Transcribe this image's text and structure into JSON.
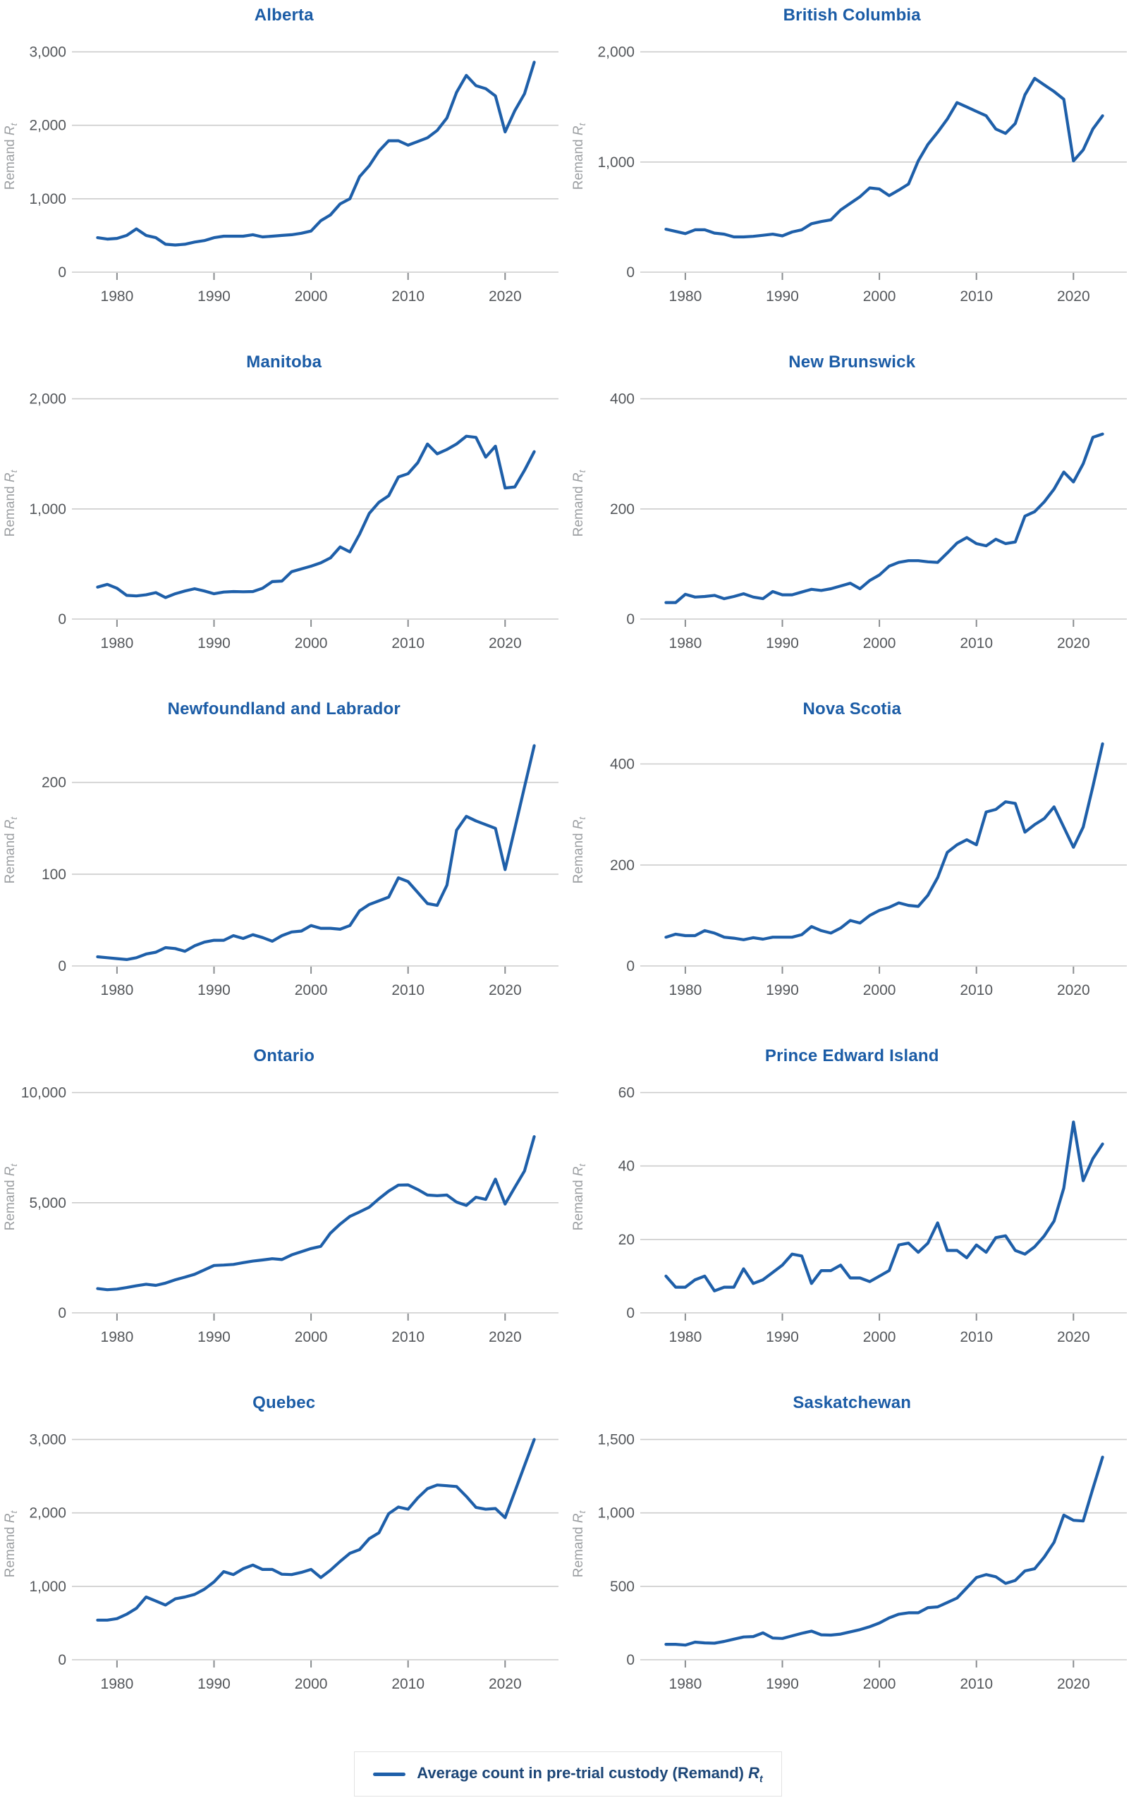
{
  "colors": {
    "title_blue": "#1b5ca6",
    "line_blue": "#1e5fa9",
    "gridline": "#cccccc",
    "tick_mark": "#898c8f",
    "tick_label": "#54575b",
    "axis_unit_label": "#9c9fa2",
    "legend_text": "#1c4677",
    "legend_border": "#e2e2e2"
  },
  "ylabel": {
    "prefix": "Remand ",
    "symbol": "R",
    "subscript": "t"
  },
  "legend": {
    "label": "Average count in pre-trial custody (Remand) ",
    "symbol": "R",
    "subscript": "t"
  },
  "chart_data": {
    "type": "line",
    "layout": "small-multiples-2x5",
    "grid": true,
    "series_label": "Average count in pre-trial custody (Remand) Rt",
    "xlabel": "",
    "ylabel": "Remand Rt",
    "xlim": [
      1975.5,
      2025.5
    ],
    "xticks": [
      1980,
      1990,
      2000,
      2010,
      2020
    ],
    "years": [
      1978,
      1979,
      1980,
      1981,
      1982,
      1983,
      1984,
      1985,
      1986,
      1987,
      1988,
      1989,
      1990,
      1991,
      1992,
      1993,
      1994,
      1995,
      1996,
      1997,
      1998,
      1999,
      2000,
      2001,
      2002,
      2003,
      2004,
      2005,
      2006,
      2007,
      2008,
      2009,
      2010,
      2011,
      2012,
      2013,
      2014,
      2015,
      2016,
      2017,
      2018,
      2019,
      2020,
      2021,
      2022,
      2023
    ],
    "charts": [
      {
        "title": "Alberta",
        "yticks": [
          0,
          1000,
          2000,
          3000
        ],
        "ymax": 3150,
        "values": [
          470,
          450,
          460,
          500,
          590,
          500,
          470,
          380,
          370,
          380,
          410,
          430,
          470,
          490,
          490,
          490,
          510,
          480,
          490,
          500,
          510,
          530,
          560,
          700,
          780,
          930,
          1000,
          1300,
          1450,
          1650,
          1790,
          1790,
          1730,
          1780,
          1830,
          1930,
          2100,
          2450,
          2680,
          2540,
          2500,
          2400,
          1910,
          2200,
          2430,
          2860
        ]
      },
      {
        "title": "British Columbia",
        "yticks": [
          0,
          1000,
          2000
        ],
        "ymax": 2100,
        "values": [
          390,
          370,
          350,
          385,
          385,
          355,
          345,
          320,
          320,
          325,
          335,
          345,
          330,
          365,
          385,
          440,
          460,
          475,
          565,
          625,
          685,
          765,
          755,
          695,
          745,
          800,
          1010,
          1160,
          1270,
          1390,
          1540,
          1500,
          1460,
          1420,
          1300,
          1260,
          1350,
          1610,
          1760,
          1700,
          1640,
          1570,
          1010,
          1110,
          1300,
          1420
        ]
      },
      {
        "title": "Manitoba",
        "yticks": [
          0,
          1000,
          2000
        ],
        "ymax": 2100,
        "values": [
          290,
          315,
          280,
          215,
          210,
          220,
          240,
          195,
          230,
          255,
          275,
          255,
          230,
          245,
          250,
          248,
          250,
          280,
          340,
          345,
          430,
          455,
          480,
          510,
          555,
          655,
          610,
          770,
          960,
          1060,
          1120,
          1290,
          1320,
          1420,
          1590,
          1500,
          1540,
          1590,
          1660,
          1650,
          1470,
          1570,
          1190,
          1200,
          1350,
          1520
        ]
      },
      {
        "title": "New Brunswick",
        "yticks": [
          0,
          200,
          400
        ],
        "ymax": 420,
        "values": [
          30,
          30,
          45,
          40,
          41,
          43,
          37,
          41,
          46,
          40,
          37,
          50,
          44,
          44,
          49,
          54,
          52,
          55,
          60,
          65,
          55,
          70,
          80,
          96,
          103,
          106,
          106,
          104,
          103,
          120,
          138,
          148,
          137,
          133,
          145,
          137,
          140,
          187,
          195,
          213,
          236,
          267,
          249,
          282,
          330,
          336
        ]
      },
      {
        "title": "Newfoundland and Labrador",
        "yticks": [
          0,
          100,
          200
        ],
        "ymax": 252,
        "values": [
          10,
          9,
          8,
          7,
          9,
          13,
          15,
          20,
          19,
          16,
          22,
          26,
          28,
          28,
          33,
          30,
          34,
          31,
          27,
          33,
          37,
          38,
          44,
          41,
          41,
          40,
          44,
          60,
          67,
          71,
          75,
          96,
          92,
          80,
          68,
          66,
          88,
          148,
          163,
          158,
          154,
          150,
          105,
          150,
          195,
          240
        ]
      },
      {
        "title": "Nova Scotia",
        "yticks": [
          0,
          200,
          400
        ],
        "ymax": 458,
        "values": [
          57,
          63,
          60,
          60,
          70,
          65,
          57,
          55,
          52,
          56,
          53,
          57,
          57,
          57,
          62,
          78,
          70,
          65,
          75,
          90,
          85,
          100,
          110,
          116,
          125,
          120,
          118,
          140,
          175,
          225,
          240,
          250,
          240,
          305,
          310,
          325,
          322,
          265,
          280,
          292,
          315,
          275,
          235,
          275,
          355,
          440
        ]
      },
      {
        "title": "Ontario",
        "yticks": [
          0,
          5000,
          10000
        ],
        "ymax": 10500,
        "values": [
          1100,
          1050,
          1080,
          1150,
          1230,
          1300,
          1250,
          1350,
          1500,
          1620,
          1750,
          1950,
          2150,
          2170,
          2200,
          2280,
          2350,
          2400,
          2460,
          2420,
          2630,
          2780,
          2920,
          3020,
          3620,
          4030,
          4380,
          4580,
          4800,
          5180,
          5530,
          5800,
          5810,
          5600,
          5350,
          5320,
          5350,
          5030,
          4880,
          5250,
          5150,
          6070,
          4940,
          5700,
          6440,
          8000
        ]
      },
      {
        "title": "Prince Edward Island",
        "yticks": [
          0,
          20,
          40,
          60
        ],
        "ymax": 63,
        "values": [
          10,
          7,
          7,
          9,
          10,
          6,
          7,
          7,
          12,
          8,
          9,
          11,
          13,
          16,
          15.5,
          8,
          11.5,
          11.5,
          13,
          9.5,
          9.5,
          8.5,
          10,
          11.5,
          18.5,
          19,
          16.5,
          19,
          24.5,
          17,
          17,
          15,
          18.5,
          16.5,
          20.5,
          21,
          17,
          16,
          18,
          21,
          25,
          34,
          52,
          36,
          42,
          46
        ]
      },
      {
        "title": "Quebec",
        "yticks": [
          0,
          1000,
          2000,
          3000
        ],
        "ymax": 3150,
        "values": [
          540,
          540,
          560,
          620,
          700,
          855,
          800,
          745,
          830,
          855,
          890,
          960,
          1060,
          1200,
          1160,
          1240,
          1290,
          1230,
          1230,
          1165,
          1160,
          1190,
          1230,
          1120,
          1220,
          1340,
          1450,
          1500,
          1650,
          1730,
          1990,
          2080,
          2050,
          2205,
          2330,
          2380,
          2370,
          2360,
          2225,
          2075,
          2050,
          2060,
          1935,
          2290,
          2645,
          3000
        ]
      },
      {
        "title": "Saskatchewan",
        "yticks": [
          0,
          500,
          1000,
          1500
        ],
        "ymax": 1575,
        "values": [
          105,
          105,
          100,
          120,
          115,
          113,
          125,
          140,
          155,
          158,
          183,
          148,
          145,
          163,
          180,
          195,
          170,
          168,
          175,
          190,
          205,
          225,
          250,
          285,
          310,
          320,
          320,
          355,
          360,
          390,
          420,
          490,
          560,
          580,
          565,
          520,
          540,
          605,
          620,
          700,
          800,
          985,
          950,
          945,
          1165,
          1380
        ]
      }
    ]
  }
}
